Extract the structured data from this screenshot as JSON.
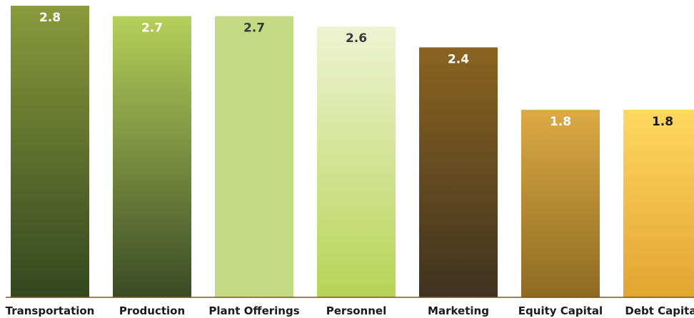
{
  "chart_data": {
    "type": "bar",
    "title": "",
    "xlabel": "",
    "ylabel": "",
    "ylim": [
      0,
      2.8
    ],
    "grid": false,
    "legend": "none",
    "categories": [
      "Transportation",
      "Production",
      "Plant Offerings",
      "Personnel",
      "Marketing",
      "Equity Capital",
      "Debt Capital"
    ],
    "values": [
      2.8,
      2.7,
      2.7,
      2.6,
      2.4,
      1.8,
      1.8
    ],
    "value_labels": [
      "2.8",
      "2.7",
      "2.7",
      "2.6",
      "2.4",
      "1.8",
      "1.8"
    ],
    "bar_colors": [
      {
        "top": "#8a9a3c",
        "bottom": "#34461f",
        "label": "#ffffff"
      },
      {
        "top": "#b5d05a",
        "bottom": "#3b4a25",
        "label": "#ffffff"
      },
      {
        "top": "#c4da82",
        "bottom": "#c4da82",
        "label": "#3a3a3a"
      },
      {
        "top": "#eef3d2",
        "bottom": "#b8d356",
        "label": "#3a3a3a"
      },
      {
        "top": "#8a6420",
        "bottom": "#3f3220",
        "label": "#ffffff"
      },
      {
        "top": "#dcaa44",
        "bottom": "#8e6a22",
        "label": "#ffffff"
      },
      {
        "top": "#ffd860",
        "bottom": "#e2a530",
        "label": "#1a1a1a"
      }
    ],
    "axis_color": "#7a5418"
  }
}
